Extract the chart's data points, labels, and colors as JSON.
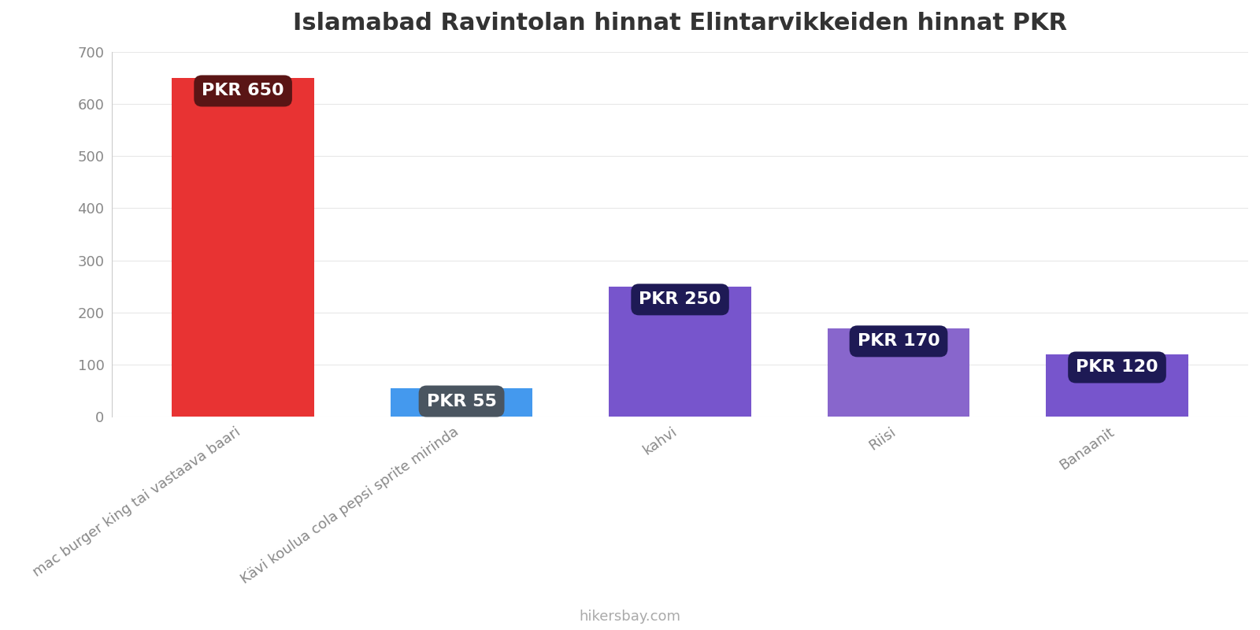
{
  "title": "Islamabad Ravintolan hinnat Elintarvikkeiden hinnat PKR",
  "categories": [
    "mac burger king tai vastaava baari",
    "Kävi koulua cola pepsi sprite mirinda",
    "kahvi",
    "Riisi",
    "Banaanit"
  ],
  "values": [
    650,
    55,
    250,
    170,
    120
  ],
  "bar_colors": [
    "#e83333",
    "#4499ee",
    "#7755cc",
    "#8866cc",
    "#7755cc"
  ],
  "label_bg_colors": [
    "#5a1515",
    "#4a5560",
    "#1e1a55",
    "#1e1a55",
    "#1e1a55"
  ],
  "labels": [
    "PKR 650",
    "PKR 55",
    "PKR 250",
    "PKR 170",
    "PKR 120"
  ],
  "ylim": [
    0,
    700
  ],
  "yticks": [
    0,
    100,
    200,
    300,
    400,
    500,
    600,
    700
  ],
  "background_color": "#ffffff",
  "title_fontsize": 22,
  "tick_label_fontsize": 13,
  "watermark": "hikersbay.com",
  "bar_width": 0.65,
  "label_fontsize": 16
}
